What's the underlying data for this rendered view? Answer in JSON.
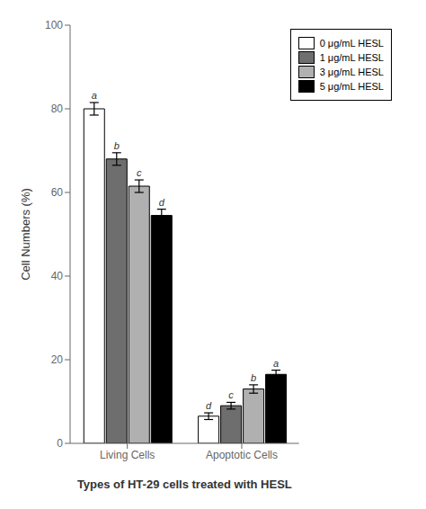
{
  "chart_data": {
    "type": "bar",
    "categories": [
      "Living Cells",
      "Apoptotic Cells"
    ],
    "xlabel": "Types of HT-29 cells treated with HESL",
    "ylabel": "Cell Numbers (%)",
    "ylim": [
      0,
      100
    ],
    "yticks": [
      0,
      20,
      40,
      60,
      80,
      100
    ],
    "grid": false,
    "legend": "upper right",
    "series": [
      {
        "name": "0 μg/mL HESL",
        "color": "#ffffff",
        "values": [
          80.0,
          6.5
        ],
        "errors": [
          1.5,
          0.8
        ],
        "annotations": [
          "a",
          "d"
        ]
      },
      {
        "name": "1 μg/mL HESL",
        "color": "#6e6e6e",
        "values": [
          68.0,
          9.0
        ],
        "errors": [
          1.5,
          0.8
        ],
        "annotations": [
          "b",
          "c"
        ]
      },
      {
        "name": "3 μg/mL HESL",
        "color": "#b0b0b0",
        "values": [
          61.5,
          13.0
        ],
        "errors": [
          1.5,
          1.0
        ],
        "annotations": [
          "c",
          "b"
        ]
      },
      {
        "name": "5 μg/mL HESL",
        "color": "#000000",
        "values": [
          54.5,
          16.5
        ],
        "errors": [
          1.5,
          1.0
        ],
        "annotations": [
          "d",
          "a"
        ]
      }
    ]
  }
}
